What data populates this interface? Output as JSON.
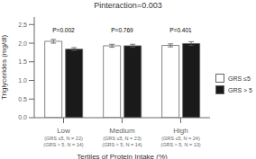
{
  "chart_data": {
    "type": "bar",
    "title": "Pinteraction=0.003",
    "xlabel": "Tertiles of Protein Intake (%)",
    "ylabel": "Triglycerides (mg/dl)",
    "categories": [
      "Low",
      "Medium",
      "High"
    ],
    "category_sublabels": [
      [
        "(GRS ≤5, N = 22)",
        "(GRS ≤5, N = 23)",
        "(GRS ≤5, N = 24)"
      ],
      [
        "(GRS > 5, N = 14)",
        "(GRS > 5, N = 14)",
        "(GRS > 5, N = 13)"
      ]
    ],
    "series": [
      {
        "name": "GRS ≤5",
        "color": "#ffffff",
        "values": [
          2.05,
          1.93,
          1.94
        ],
        "errors": [
          0.05,
          0.04,
          0.04
        ]
      },
      {
        "name": "GRS > 5",
        "color": "#1a1a1a",
        "values": [
          1.84,
          1.93,
          1.99
        ],
        "errors": [
          0.04,
          0.04,
          0.05
        ]
      }
    ],
    "annotations": [
      {
        "text": "P=0.002",
        "x": "Low",
        "y": 2.18
      },
      {
        "text": "P=0.769",
        "x": "Medium",
        "y": 2.18
      },
      {
        "text": "P=0.401",
        "x": "High",
        "y": 2.18
      }
    ],
    "ylim": [
      0.0,
      2.7
    ],
    "yticks": [
      {
        "value": 0.0,
        "label": "0.0"
      },
      0.5,
      {
        "value": 1.0,
        "label": "1.0"
      },
      1.5,
      {
        "value": 2.0,
        "label": "2.0"
      },
      2.5
    ],
    "grid": false,
    "legend": "right"
  }
}
